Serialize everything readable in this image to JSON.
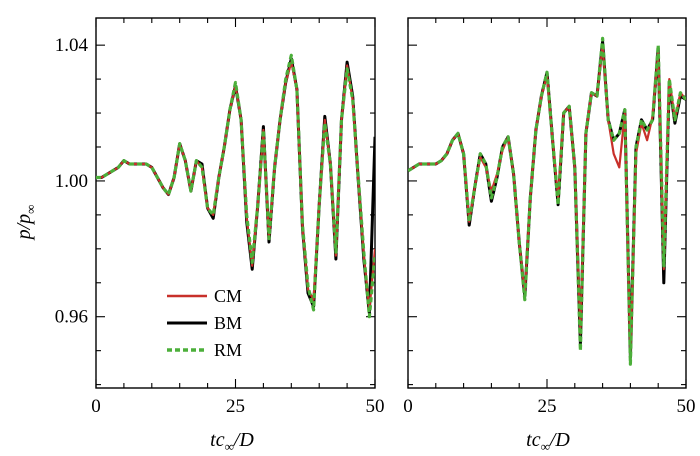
{
  "chart_data": {
    "type": "line",
    "panels": [
      {
        "name": "left",
        "xlim": [
          0,
          50
        ],
        "ylim": [
          0.939,
          1.048
        ],
        "x_ticks": [
          0,
          25,
          50
        ],
        "y_ticks": [
          0.96,
          1.0,
          1.04
        ],
        "x_tick_labels": [
          "0",
          "25",
          "50"
        ],
        "y_tick_labels": [
          "0.96",
          "1.00",
          "1.04"
        ],
        "series": [
          {
            "name": "CM",
            "x": [
              0,
              1,
              2,
              3,
              4,
              5,
              6,
              7,
              8,
              9,
              10,
              11,
              12,
              13,
              14,
              15,
              16,
              17,
              18,
              19,
              20,
              21,
              22,
              23,
              24,
              25,
              26,
              27,
              28,
              29,
              30,
              31,
              32,
              33,
              34,
              35,
              36,
              37,
              38,
              39,
              40,
              41,
              42,
              43,
              44,
              45,
              46,
              47,
              48,
              49,
              50
            ],
            "y": [
              1.001,
              1.001,
              1.002,
              1.003,
              1.004,
              1.006,
              1.005,
              1.005,
              1.005,
              1.005,
              1.004,
              1.001,
              0.998,
              0.996,
              1.001,
              1.011,
              1.006,
              0.997,
              1.006,
              1.004,
              0.992,
              0.99,
              1.001,
              1.01,
              1.021,
              1.028,
              1.018,
              0.989,
              0.975,
              0.993,
              1.015,
              0.983,
              1.004,
              1.018,
              1.029,
              1.035,
              1.027,
              0.986,
              0.968,
              0.965,
              0.993,
              1.018,
              1.005,
              0.978,
              1.018,
              1.034,
              1.024,
              1.0,
              0.978,
              0.962,
              0.98
            ]
          },
          {
            "name": "BM",
            "x": [
              0,
              1,
              2,
              3,
              4,
              5,
              6,
              7,
              8,
              9,
              10,
              11,
              12,
              13,
              14,
              15,
              16,
              17,
              18,
              19,
              20,
              21,
              22,
              23,
              24,
              25,
              26,
              27,
              28,
              29,
              30,
              31,
              32,
              33,
              34,
              35,
              36,
              37,
              38,
              39,
              40,
              41,
              42,
              43,
              44,
              45,
              46,
              47,
              48,
              49,
              50
            ],
            "y": [
              1.001,
              1.001,
              1.002,
              1.003,
              1.004,
              1.006,
              1.005,
              1.005,
              1.005,
              1.005,
              1.004,
              1.001,
              0.998,
              0.996,
              1.001,
              1.011,
              1.006,
              0.997,
              1.006,
              1.005,
              0.992,
              0.989,
              1.001,
              1.01,
              1.021,
              1.028,
              1.018,
              0.988,
              0.974,
              0.993,
              1.016,
              0.982,
              1.004,
              1.018,
              1.029,
              1.036,
              1.027,
              0.986,
              0.967,
              0.963,
              0.993,
              1.019,
              1.005,
              0.977,
              1.018,
              1.035,
              1.025,
              1.0,
              0.977,
              0.961,
              1.013
            ]
          },
          {
            "name": "RM",
            "x": [
              0,
              1,
              2,
              3,
              4,
              5,
              6,
              7,
              8,
              9,
              10,
              11,
              12,
              13,
              14,
              15,
              16,
              17,
              18,
              19,
              20,
              21,
              22,
              23,
              24,
              25,
              26,
              27,
              28,
              29,
              30,
              31,
              32,
              33,
              34,
              35,
              36,
              37,
              38,
              39,
              40,
              41,
              42,
              43,
              44,
              45,
              46,
              47,
              48,
              49,
              50
            ],
            "y": [
              1.001,
              1.001,
              1.002,
              1.003,
              1.004,
              1.006,
              1.005,
              1.005,
              1.005,
              1.005,
              1.004,
              1.001,
              0.998,
              0.996,
              1.001,
              1.011,
              1.006,
              0.997,
              1.006,
              1.004,
              0.992,
              0.99,
              1.001,
              1.01,
              1.021,
              1.029,
              1.018,
              0.99,
              0.976,
              0.993,
              1.015,
              0.983,
              1.004,
              1.018,
              1.03,
              1.037,
              1.027,
              0.987,
              0.969,
              0.962,
              0.993,
              1.017,
              1.005,
              0.979,
              1.018,
              1.033,
              1.024,
              1.001,
              0.979,
              0.96,
              0.978
            ]
          }
        ]
      },
      {
        "name": "right",
        "xlim": [
          0,
          50
        ],
        "ylim": [
          0.939,
          1.048
        ],
        "x_ticks": [
          0,
          25,
          50
        ],
        "y_ticks": [
          0.96,
          1.0,
          1.04
        ],
        "x_tick_labels": [
          "0",
          "25",
          "50"
        ],
        "y_tick_labels": [],
        "series": [
          {
            "name": "CM",
            "x": [
              0,
              1,
              2,
              3,
              4,
              5,
              6,
              7,
              8,
              9,
              10,
              11,
              12,
              13,
              14,
              15,
              16,
              17,
              18,
              19,
              20,
              21,
              22,
              23,
              24,
              25,
              26,
              27,
              28,
              29,
              30,
              31,
              32,
              33,
              34,
              35,
              36,
              37,
              38,
              39,
              40,
              41,
              42,
              43,
              44,
              45,
              46,
              47,
              48,
              49,
              50
            ],
            "y": [
              1.003,
              1.004,
              1.005,
              1.005,
              1.005,
              1.005,
              1.006,
              1.008,
              1.012,
              1.014,
              1.008,
              0.988,
              0.998,
              1.007,
              1.004,
              0.997,
              1.002,
              1.009,
              1.013,
              1.002,
              0.982,
              0.967,
              0.995,
              1.015,
              1.025,
              1.031,
              1.012,
              0.995,
              1.02,
              1.022,
              1.004,
              0.955,
              1.014,
              1.026,
              1.025,
              1.04,
              1.018,
              1.008,
              1.004,
              1.02,
              0.948,
              1.008,
              1.017,
              1.012,
              1.019,
              1.038,
              0.974,
              1.03,
              1.018,
              1.026,
              1.024
            ]
          },
          {
            "name": "BM",
            "x": [
              0,
              1,
              2,
              3,
              4,
              5,
              6,
              7,
              8,
              9,
              10,
              11,
              12,
              13,
              14,
              15,
              16,
              17,
              18,
              19,
              20,
              21,
              22,
              23,
              24,
              25,
              26,
              27,
              28,
              29,
              30,
              31,
              32,
              33,
              34,
              35,
              36,
              37,
              38,
              39,
              40,
              41,
              42,
              43,
              44,
              45,
              46,
              47,
              48,
              49,
              50
            ],
            "y": [
              1.003,
              1.004,
              1.005,
              1.005,
              1.005,
              1.005,
              1.006,
              1.008,
              1.012,
              1.014,
              1.008,
              0.987,
              0.998,
              1.008,
              1.005,
              0.994,
              1.001,
              1.01,
              1.013,
              1.002,
              0.982,
              0.966,
              0.995,
              1.015,
              1.025,
              1.032,
              1.012,
              0.993,
              1.02,
              1.022,
              1.004,
              0.952,
              1.014,
              1.026,
              1.025,
              1.041,
              1.018,
              1.012,
              1.014,
              1.021,
              0.948,
              1.01,
              1.018,
              1.015,
              1.018,
              1.039,
              0.97,
              1.029,
              1.017,
              1.025,
              1.024
            ]
          },
          {
            "name": "RM",
            "x": [
              0,
              1,
              2,
              3,
              4,
              5,
              6,
              7,
              8,
              9,
              10,
              11,
              12,
              13,
              14,
              15,
              16,
              17,
              18,
              19,
              20,
              21,
              22,
              23,
              24,
              25,
              26,
              27,
              28,
              29,
              30,
              31,
              32,
              33,
              34,
              35,
              36,
              37,
              38,
              39,
              40,
              41,
              42,
              43,
              44,
              45,
              46,
              47,
              48,
              49,
              50
            ],
            "y": [
              1.003,
              1.004,
              1.005,
              1.005,
              1.005,
              1.005,
              1.006,
              1.008,
              1.012,
              1.014,
              1.008,
              0.988,
              0.998,
              1.008,
              1.005,
              0.995,
              1.001,
              1.01,
              1.013,
              1.002,
              0.982,
              0.965,
              0.995,
              1.015,
              1.025,
              1.032,
              1.012,
              0.993,
              1.02,
              1.022,
              1.004,
              0.95,
              1.014,
              1.026,
              1.025,
              1.042,
              1.018,
              1.012,
              1.014,
              1.021,
              0.946,
              1.01,
              1.018,
              1.015,
              1.018,
              1.04,
              0.975,
              1.03,
              1.018,
              1.026,
              1.024
            ]
          }
        ]
      }
    ],
    "ylabel_main": "p",
    "ylabel_sub": "p",
    "ylabel_subscript": "∞",
    "xlabel_main": "tc",
    "xlabel_subscript": "∞",
    "xlabel_tail": "/D",
    "legend": [
      {
        "name": "CM",
        "color": "#c8302a",
        "style": "solid"
      },
      {
        "name": "BM",
        "color": "#000000",
        "style": "solid"
      },
      {
        "name": "RM",
        "color": "#4caf3a",
        "style": "dashed"
      }
    ],
    "legend_position": "lower-left of left panel"
  },
  "colors": {
    "CM": "#c8302a",
    "BM": "#000000",
    "RM": "#4caf3a"
  }
}
